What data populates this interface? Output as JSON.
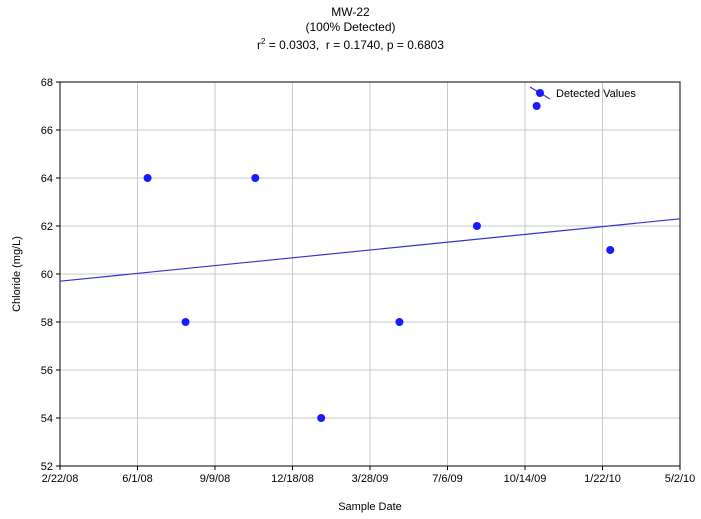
{
  "chart_data": {
    "type": "scatter",
    "title": "MW-22",
    "subtitle": "(100% Detected)",
    "stats": {
      "r2_label": "r",
      "r2_value": "= 0.0303,",
      "r_text": "r = 0.1740,",
      "p_text": "p = 0.6803"
    },
    "xlabel": "Sample Date",
    "ylabel": "Chloride (mg/L)",
    "x_ticks": [
      "2/22/08",
      "6/1/08",
      "9/9/08",
      "12/18/08",
      "3/28/09",
      "7/6/09",
      "10/14/09",
      "1/22/10",
      "5/2/10"
    ],
    "xlim": [
      "2008-02-22",
      "2010-05-02"
    ],
    "y_ticks": [
      52,
      54,
      56,
      58,
      60,
      62,
      64,
      66,
      68
    ],
    "ylim": [
      52,
      68
    ],
    "grid": true,
    "legend_position": "top-right",
    "series": [
      {
        "name": "Detected Values",
        "color": "#1a1aff",
        "points": [
          {
            "x": "2008-06-14",
            "y": 64
          },
          {
            "x": "2008-08-02",
            "y": 58
          },
          {
            "x": "2008-10-31",
            "y": 64
          },
          {
            "x": "2009-01-24",
            "y": 54
          },
          {
            "x": "2009-05-05",
            "y": 58
          },
          {
            "x": "2009-08-13",
            "y": 62
          },
          {
            "x": "2009-10-29",
            "y": 67
          },
          {
            "x": "2010-02-01",
            "y": 61
          }
        ]
      }
    ],
    "trend_line": {
      "color": "#3333cc",
      "start": {
        "x": "2008-02-22",
        "y": 59.7
      },
      "end": {
        "x": "2010-05-02",
        "y": 62.3
      }
    }
  }
}
